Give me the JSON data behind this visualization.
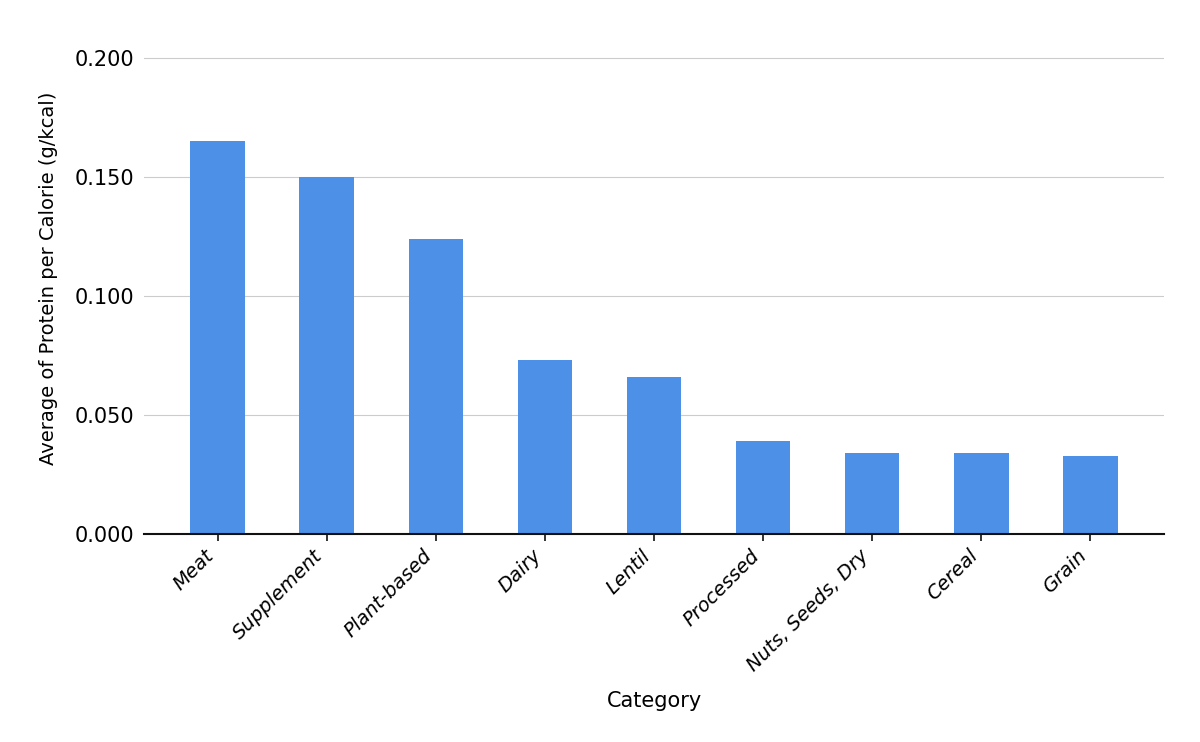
{
  "categories": [
    "Meat",
    "Supplement",
    "Plant-based",
    "Dairy",
    "Lentil",
    "Processed",
    "Nuts, Seeds, Dry",
    "Cereal",
    "Grain"
  ],
  "values": [
    0.165,
    0.15,
    0.124,
    0.073,
    0.066,
    0.039,
    0.034,
    0.034,
    0.033
  ],
  "bar_color": "#4d90e8",
  "xlabel": "Category",
  "ylabel": "Average of Protein per Calorie (g/kcal)",
  "ylim": [
    0,
    0.215
  ],
  "yticks": [
    0.0,
    0.05,
    0.1,
    0.15,
    0.2
  ],
  "background_color": "#ffffff",
  "grid_color": "#cccccc",
  "xlabel_fontsize": 15,
  "ylabel_fontsize": 14,
  "ytick_fontsize": 15,
  "xtick_fontsize": 14,
  "bar_width": 0.5
}
